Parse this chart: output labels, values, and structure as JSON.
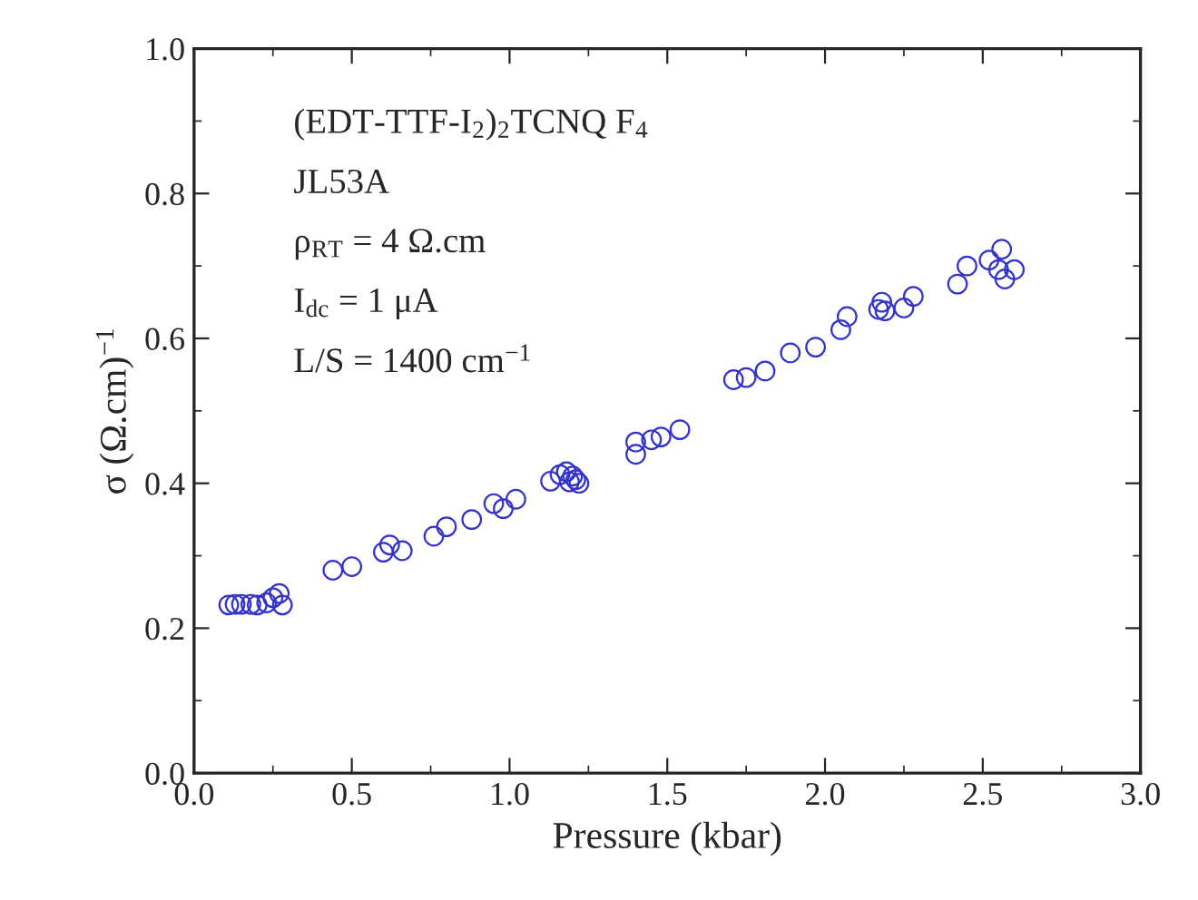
{
  "chart_data": {
    "type": "scatter",
    "xlabel": "Pressure (kbar)",
    "ylabel": "σ (Ω.cm)$^{−1}$",
    "annotations": [
      "(EDT-TTF-I$_{2}$)$_{2}$TCNQ F$_{4}$",
      "JL53A",
      "ρ$_{RT}$ = 4 Ω.cm",
      "I$_{dc}$ = 1 μA",
      "L/S = 1400 cm$^{−1}$"
    ],
    "x": [
      0.11,
      0.13,
      0.15,
      0.18,
      0.2,
      0.23,
      0.25,
      0.27,
      0.28,
      0.44,
      0.5,
      0.6,
      0.62,
      0.66,
      0.76,
      0.8,
      0.88,
      0.95,
      0.98,
      1.02,
      1.13,
      1.16,
      1.18,
      1.2,
      1.19,
      1.22,
      1.21,
      1.4,
      1.4,
      1.45,
      1.48,
      1.54,
      1.71,
      1.75,
      1.81,
      1.89,
      1.97,
      2.05,
      2.07,
      2.17,
      2.18,
      2.19,
      2.25,
      2.28,
      2.42,
      2.45,
      2.52,
      2.55,
      2.56,
      2.57,
      2.6
    ],
    "series": [
      {
        "color": "#3333cc",
        "values": [
          0.232,
          0.233,
          0.233,
          0.233,
          0.232,
          0.235,
          0.242,
          0.248,
          0.232,
          0.28,
          0.285,
          0.305,
          0.315,
          0.307,
          0.327,
          0.34,
          0.35,
          0.372,
          0.365,
          0.378,
          0.403,
          0.412,
          0.416,
          0.41,
          0.402,
          0.4,
          0.405,
          0.44,
          0.457,
          0.46,
          0.464,
          0.474,
          0.543,
          0.546,
          0.555,
          0.58,
          0.588,
          0.612,
          0.63,
          0.64,
          0.65,
          0.638,
          0.642,
          0.658,
          0.675,
          0.7,
          0.708,
          0.695,
          0.723,
          0.682,
          0.695
        ]
      }
    ],
    "xlim": [
      0,
      3.0
    ],
    "xticks": [
      {
        "value": 0,
        "label": "0.0"
      },
      0.5,
      {
        "value": 1,
        "label": "1.0"
      },
      1.5,
      {
        "value": 2,
        "label": "2.0"
      },
      2.5,
      {
        "value": 3,
        "label": "3.0"
      }
    ],
    "ylim": [
      0,
      1.0
    ],
    "yticks": [
      {
        "value": 0,
        "label": "0.0"
      },
      0.2,
      0.4,
      0.6,
      0.8,
      {
        "value": 1,
        "label": "1.0"
      }
    ],
    "marker": "circle",
    "grid": false,
    "legend": false
  }
}
